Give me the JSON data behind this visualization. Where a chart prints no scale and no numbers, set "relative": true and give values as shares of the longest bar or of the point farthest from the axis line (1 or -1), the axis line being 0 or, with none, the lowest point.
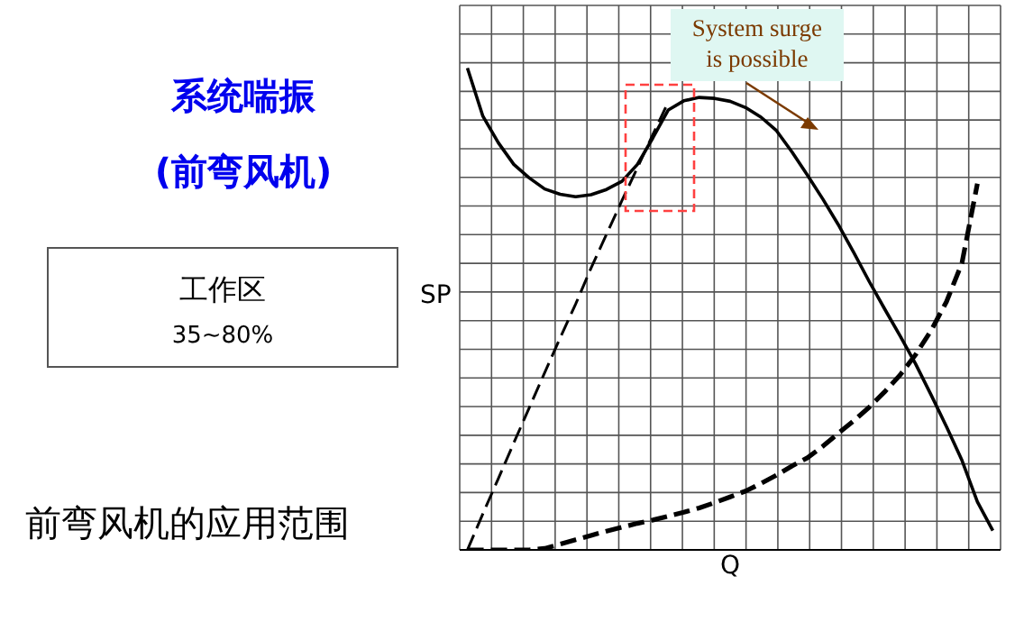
{
  "chart_data": {
    "type": "line",
    "title": "系统喘振",
    "subtitle": "(前弯风机)",
    "xlabel": "Q",
    "ylabel": "SP",
    "relative": true,
    "grid": true,
    "marker": "none",
    "annotations": [
      "System surge is possible",
      "工作区",
      "35~80%",
      "前弯风机的应用范围"
    ],
    "categories": [
      null,
      null,
      null,
      null,
      null,
      null,
      null,
      null,
      null,
      null,
      null,
      null,
      null,
      null,
      null,
      null,
      null,
      null,
      null,
      null,
      null,
      null,
      null,
      null,
      null,
      null,
      null,
      null,
      null,
      null,
      null,
      null,
      null,
      null,
      null
    ],
    "series": [
      {
        "color": "#000000",
        "line_style": "solid",
        "values": [
          1,
          0.9,
          0.845,
          0.8,
          0.772,
          0.749,
          0.738,
          0.733,
          0.737,
          0.748,
          0.765,
          0.8,
          0.855,
          0.913,
          0.932,
          0.939,
          0.937,
          0.931,
          0.918,
          0.898,
          0.87,
          0.826,
          0.778,
          0.728,
          0.675,
          0.617,
          0.557,
          0.5,
          0.444,
          0.386,
          0.322,
          0.256,
          0.186,
          0.1,
          0.04
        ]
      },
      {
        "color": "#000000",
        "line_style": "dashed",
        "values": [
          0,
          0.075,
          0.148,
          0.222,
          0.295,
          0.368,
          0.44,
          0.51,
          0.585,
          0.655,
          0.725,
          0.793,
          0.862,
          0.93,
          null,
          null,
          null,
          null,
          null,
          null,
          null,
          null,
          null,
          null,
          null,
          null,
          null,
          null,
          null,
          null,
          null,
          null,
          null,
          null,
          null
        ]
      },
      {
        "color": "#000000",
        "line_style": "dashed",
        "values": [
          0,
          0,
          0,
          0,
          0,
          0.003,
          0.012,
          0.021,
          0.03,
          0.039,
          0.047,
          0.055,
          0.062,
          0.07,
          0.078,
          0.087,
          0.098,
          0.11,
          0.122,
          0.138,
          0.155,
          0.174,
          0.191,
          0.215,
          0.242,
          0.268,
          0.296,
          0.328,
          0.363,
          0.405,
          0.455,
          0.515,
          0.595,
          0.76,
          null
        ]
      }
    ]
  }
}
